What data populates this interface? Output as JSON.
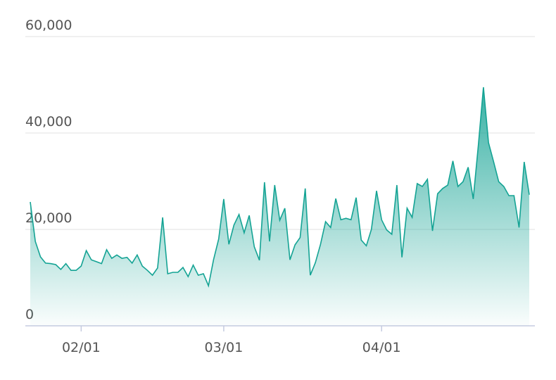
{
  "chart_data": {
    "type": "area",
    "x": [
      "01/22",
      "01/23",
      "01/24",
      "01/25",
      "01/26",
      "01/27",
      "01/28",
      "01/29",
      "01/30",
      "01/31",
      "02/01",
      "02/02",
      "02/03",
      "02/04",
      "02/05",
      "02/06",
      "02/07",
      "02/08",
      "02/09",
      "02/10",
      "02/11",
      "02/12",
      "02/13",
      "02/14",
      "02/15",
      "02/16",
      "02/17",
      "02/18",
      "02/19",
      "02/20",
      "02/21",
      "02/22",
      "02/23",
      "02/24",
      "02/25",
      "02/26",
      "02/27",
      "02/28",
      "03/01",
      "03/02",
      "03/03",
      "03/04",
      "03/05",
      "03/06",
      "03/07",
      "03/08",
      "03/09",
      "03/10",
      "03/11",
      "03/12",
      "03/13",
      "03/14",
      "03/15",
      "03/16",
      "03/17",
      "03/18",
      "03/19",
      "03/20",
      "03/21",
      "03/22",
      "03/23",
      "03/24",
      "03/25",
      "03/26",
      "03/27",
      "03/28",
      "03/29",
      "03/30",
      "03/31",
      "04/01",
      "04/02",
      "04/03",
      "04/04",
      "04/05",
      "04/06",
      "04/07",
      "04/08",
      "04/09",
      "04/10",
      "04/11",
      "04/12",
      "04/13",
      "04/14",
      "04/15",
      "04/16",
      "04/17",
      "04/18",
      "04/19",
      "04/20",
      "04/21",
      "04/22",
      "04/23",
      "04/24",
      "04/25",
      "04/26",
      "04/27",
      "04/28",
      "04/29",
      "04/30"
    ],
    "values": [
      25700,
      17500,
      14300,
      13000,
      12900,
      12700,
      11700,
      12900,
      11500,
      11500,
      12400,
      15600,
      13700,
      13300,
      12900,
      15800,
      14000,
      14700,
      14000,
      14200,
      13000,
      14700,
      12400,
      11500,
      10500,
      12000,
      22500,
      10800,
      11100,
      11100,
      12100,
      10200,
      12600,
      10500,
      10800,
      8300,
      13700,
      18000,
      26300,
      16900,
      20900,
      23100,
      19300,
      22900,
      16400,
      13600,
      29800,
      17500,
      29200,
      21900,
      24400,
      13700,
      16800,
      18300,
      28500,
      10500,
      13100,
      16900,
      21600,
      20400,
      26400,
      22000,
      22300,
      22000,
      26600,
      17800,
      16600,
      20000,
      28000,
      22000,
      19900,
      19000,
      29200,
      14200,
      24400,
      22500,
      29500,
      28900,
      30400,
      19700,
      27400,
      28500,
      29200,
      34200,
      28900,
      29900,
      32900,
      26300,
      37500,
      49500,
      38000,
      34000,
      29900,
      28900,
      27000,
      27000,
      20400,
      34000,
      27200
    ],
    "color": "#14a394",
    "xticks": [
      "02/01",
      "03/01",
      "04/01"
    ],
    "ylim": [
      0,
      60000
    ],
    "yticks": [
      0,
      {
        "value": 20000,
        "label": "20,000"
      },
      {
        "value": 40000,
        "label": "40,000"
      },
      {
        "value": 60000,
        "label": "60,000"
      }
    ],
    "grid": true
  }
}
